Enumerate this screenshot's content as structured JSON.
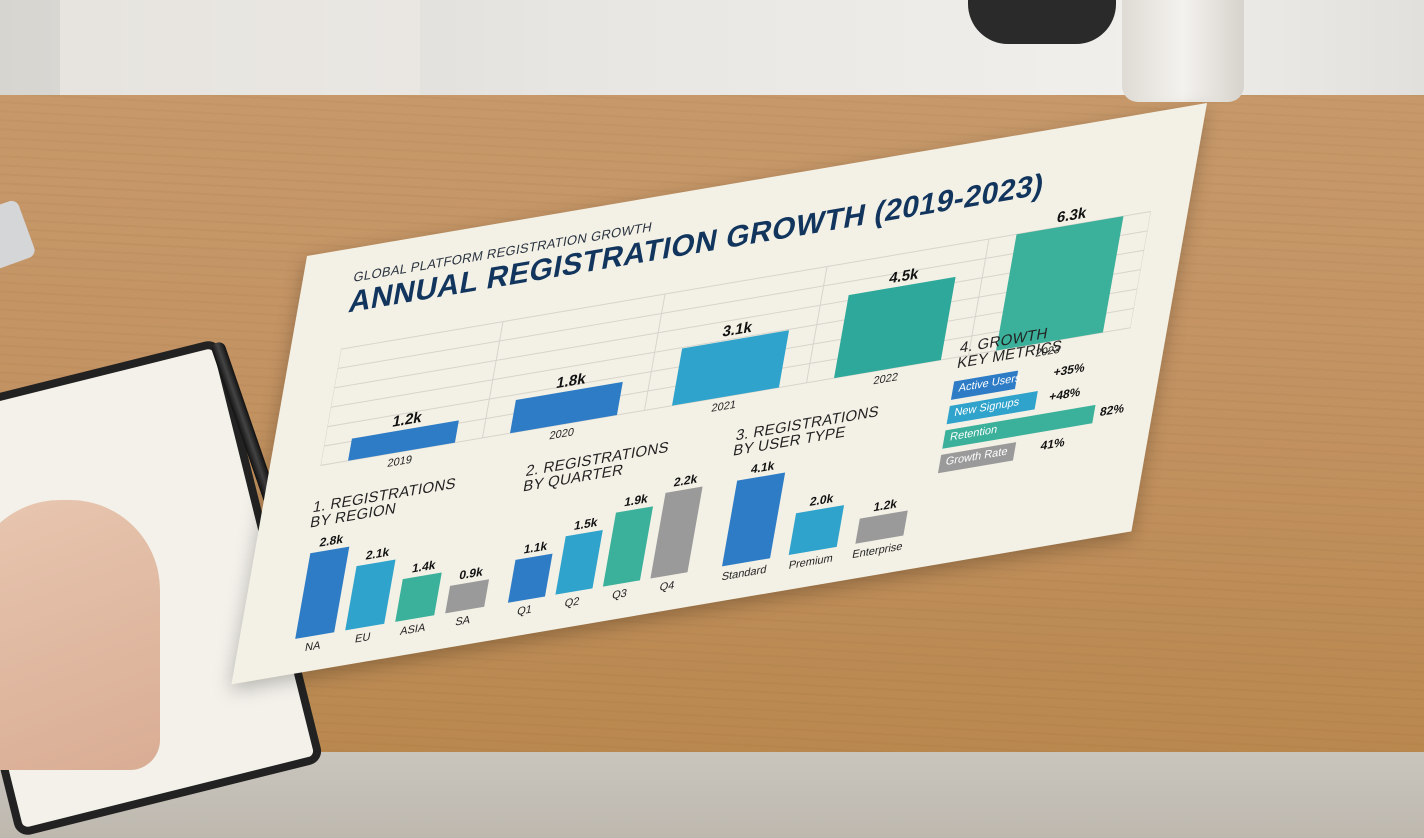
{
  "subtitle": "GLOBAL PLATFORM REGISTRATION GROWTH",
  "title": "ANNUAL REGISTRATION GROWTH (2019-2023)",
  "colors": {
    "blue": "#2e7cc6",
    "mid_blue": "#2fa3cb",
    "teal": "#3bb09a",
    "gray": "#9a9a9a",
    "navy_title": "#12355e"
  },
  "chart_data": [
    {
      "type": "bar",
      "title": "ANNUAL REGISTRATION GROWTH (2019-2023)",
      "categories": [
        "2019",
        "2020",
        "2021",
        "2022",
        "2023"
      ],
      "values": [
        1.2,
        1.8,
        3.1,
        4.5,
        6.3
      ],
      "value_labels": [
        "1.2k",
        "1.8k",
        "3.1k",
        "4.5k",
        "6.3k"
      ],
      "colors": [
        "#2e7cc6",
        "#2e7cc6",
        "#2fa3cb",
        "#2ea89a",
        "#3bb09a"
      ],
      "grid": true
    },
    {
      "type": "bar",
      "title": "1. REGISTRATIONS BY REGION",
      "title_lines": [
        "1. REGISTRATIONS",
        "BY REGION"
      ],
      "categories": [
        "NA",
        "EU",
        "ASIA",
        "SA"
      ],
      "values": [
        2.8,
        2.1,
        1.4,
        0.9
      ],
      "value_labels": [
        "2.8k",
        "2.1k",
        "1.4k",
        "0.9k"
      ],
      "colors": [
        "#2e7cc6",
        "#2fa3cb",
        "#3bb09a",
        "#9a9a9a"
      ]
    },
    {
      "type": "bar",
      "title": "2. REGISTRATIONS BY QUARTER",
      "title_lines": [
        "2. REGISTRATIONS",
        "BY QUARTER"
      ],
      "categories": [
        "Q1",
        "Q2",
        "Q3",
        "Q4"
      ],
      "values": [
        1.1,
        1.5,
        1.9,
        2.2
      ],
      "value_labels": [
        "1.1k",
        "1.5k",
        "1.9k",
        "2.2k"
      ],
      "colors": [
        "#2e7cc6",
        "#2fa3cb",
        "#3bb09a",
        "#9a9a9a"
      ]
    },
    {
      "type": "bar",
      "title": "3. REGISTRATIONS BY USER TYPE",
      "title_lines": [
        "3. REGISTRATIONS",
        "BY USER TYPE"
      ],
      "categories": [
        "Standard",
        "Premium",
        "Enterprise"
      ],
      "values": [
        4.1,
        2.0,
        1.2
      ],
      "value_labels": [
        "4.1k",
        "2.0k",
        "1.2k"
      ],
      "colors": [
        "#2e7cc6",
        "#2fa3cb",
        "#9a9a9a"
      ]
    },
    {
      "type": "bar",
      "title": "4. GROWTH KEY METRICS",
      "title_lines": [
        "4. GROWTH",
        "KEY METRICS"
      ],
      "categories": [
        "Active Users",
        "New Signups",
        "Retention",
        "Growth Rate"
      ],
      "values": [
        35,
        48,
        82,
        41
      ],
      "value_labels": [
        "+35%",
        "+48%",
        "82%",
        "41%"
      ],
      "colors": [
        "#2e7cc6",
        "#2fa3cb",
        "#3bb09a",
        "#9a9a9a"
      ]
    }
  ]
}
